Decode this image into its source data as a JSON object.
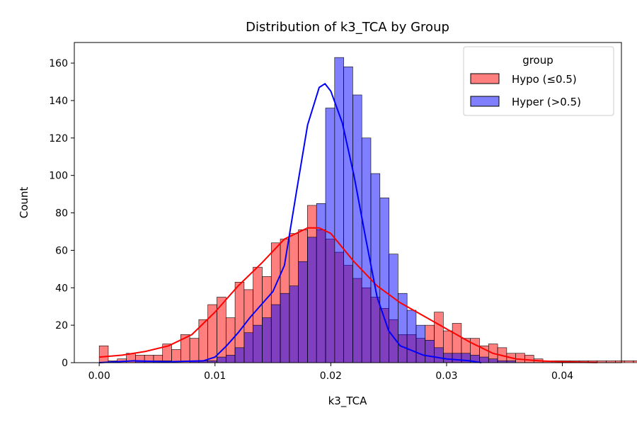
{
  "chart_data": {
    "type": "histogram",
    "title": "Distribution of k3_TCA by Group",
    "xlabel": "k3_TCA",
    "ylabel": "Count",
    "xlim": [
      -0.00215,
      0.0451
    ],
    "ylim": [
      0,
      171
    ],
    "x_ticks": [
      0.0,
      0.01,
      0.02,
      0.03,
      0.04
    ],
    "x_tick_labels": [
      "0.00",
      "0.01",
      "0.02",
      "0.03",
      "0.04"
    ],
    "y_ticks": [
      0,
      20,
      40,
      60,
      80,
      100,
      120,
      140,
      160
    ],
    "bin_start": 0.0,
    "bin_width": 0.000782,
    "legend": {
      "title": "group",
      "placement": "top-right"
    },
    "grid": false,
    "series": [
      {
        "name": "Hypo (≤0.5)",
        "fill": "#ff0000",
        "fill_opacity": 0.5,
        "kde_color": "#ff0000",
        "counts": [
          9,
          1,
          2,
          5,
          4,
          4,
          4,
          10,
          7,
          15,
          13,
          23,
          31,
          35,
          24,
          43,
          39,
          51,
          46,
          64,
          66,
          69,
          71,
          84,
          71,
          66,
          59,
          52,
          45,
          40,
          35,
          29,
          23,
          15,
          15,
          13,
          20,
          27,
          17,
          21,
          13,
          13,
          9,
          10,
          8,
          5,
          5,
          4,
          2,
          1,
          1,
          1,
          1,
          1,
          1,
          1,
          1,
          1,
          1,
          1,
          1,
          1,
          1,
          1,
          1,
          1,
          1,
          1,
          1,
          1,
          1,
          1,
          1,
          1,
          1,
          1,
          1,
          1,
          1,
          1,
          1,
          1,
          1,
          1,
          1,
          1,
          1,
          1,
          1,
          1,
          1,
          1
        ],
        "kde": {
          "x": [
            0.0,
            0.002,
            0.004,
            0.006,
            0.008,
            0.01,
            0.012,
            0.014,
            0.016,
            0.018,
            0.019,
            0.02,
            0.022,
            0.024,
            0.026,
            0.028,
            0.03,
            0.032,
            0.034,
            0.036,
            0.038,
            0.04,
            0.042,
            0.043
          ],
          "y": [
            3,
            4,
            6,
            9,
            15,
            27,
            41,
            53,
            66,
            72,
            72,
            69,
            54,
            41,
            32,
            25,
            18,
            11,
            5,
            2,
            1,
            0.5,
            0.2,
            0.1
          ]
        }
      },
      {
        "name": "Hyper (>0.5)",
        "fill": "#0000ff",
        "fill_opacity": 0.5,
        "kde_color": "#0000ff",
        "counts": [
          0,
          0,
          0,
          0,
          1,
          1,
          1,
          1,
          0,
          0,
          1,
          1,
          1,
          3,
          4,
          8,
          16,
          20,
          24,
          31,
          37,
          41,
          54,
          67,
          85,
          136,
          163,
          158,
          143,
          120,
          101,
          88,
          58,
          37,
          28,
          20,
          12,
          8,
          5,
          5,
          5,
          4,
          3,
          2,
          1,
          1,
          0,
          0,
          0,
          0,
          0,
          0,
          0,
          0,
          0,
          0,
          0,
          0,
          0,
          0,
          0,
          0,
          0,
          0,
          0,
          0,
          0,
          0,
          0,
          0,
          0,
          0,
          0,
          0,
          0,
          0,
          0,
          0,
          0,
          0,
          0,
          0,
          0,
          0,
          0,
          0,
          0,
          0,
          0,
          0,
          0,
          0
        ],
        "kde": {
          "x": [
            0.0,
            0.003,
            0.006,
            0.009,
            0.01,
            0.011,
            0.012,
            0.013,
            0.014,
            0.015,
            0.016,
            0.017,
            0.018,
            0.019,
            0.0195,
            0.02,
            0.021,
            0.022,
            0.023,
            0.024,
            0.025,
            0.026,
            0.028,
            0.03,
            0.032,
            0.033
          ],
          "y": [
            0,
            1,
            0.5,
            1,
            3,
            9,
            16,
            24,
            31,
            38,
            52,
            90,
            127,
            147,
            149,
            145,
            128,
            100,
            67,
            35,
            17,
            9,
            4,
            2,
            1,
            0
          ]
        }
      }
    ]
  }
}
